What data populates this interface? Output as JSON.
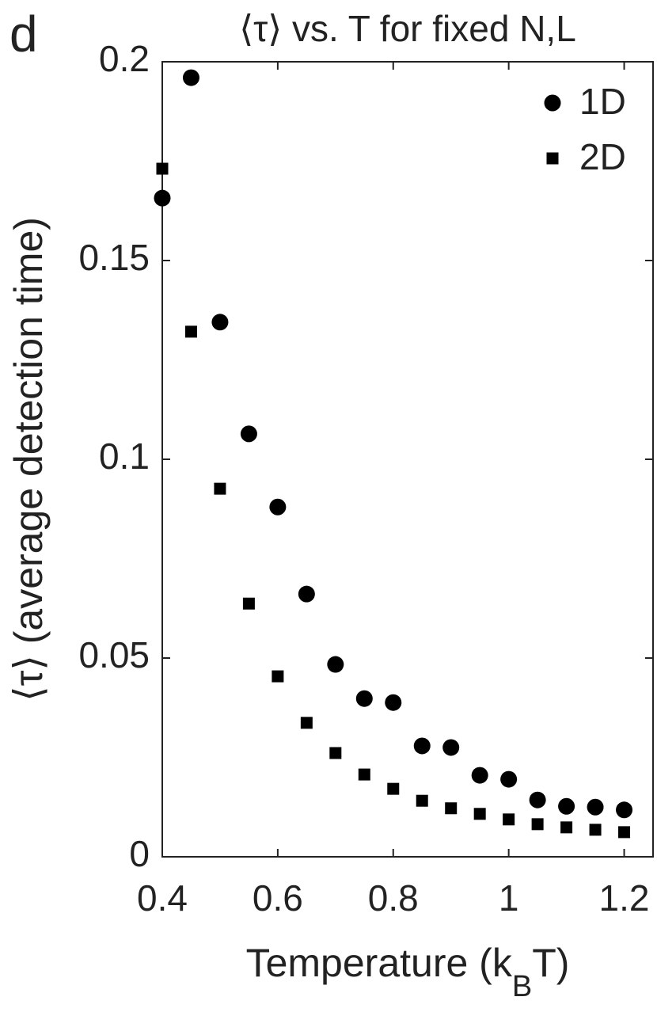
{
  "chart_data": {
    "type": "scatter",
    "panel_label": "d",
    "title": "⟨τ⟩ vs. T for fixed N,L",
    "y_label": "⟨τ⟩ (average detection time)",
    "x_label_parts": [
      "Temperature (k",
      "B",
      "T)"
    ],
    "xlim": [
      0.4,
      1.25
    ],
    "xticks": [
      0.4,
      0.6,
      0.8,
      1,
      1.2
    ],
    "ylim": [
      0,
      0.2
    ],
    "yticks": [
      0,
      0.05,
      0.1,
      0.15,
      0.2
    ],
    "legend": "upper right",
    "series": [
      {
        "name": "1D",
        "marker": "circle",
        "color": "#000000",
        "x": [
          0.4,
          0.45,
          0.5,
          0.55,
          0.6,
          0.65,
          0.7,
          0.75,
          0.8,
          0.85,
          0.9,
          0.95,
          1.0,
          1.05,
          1.1,
          1.15,
          1.2
        ],
        "values": [
          0.1657,
          0.196,
          0.1345,
          0.1064,
          0.088,
          0.0661,
          0.0484,
          0.0398,
          0.0388,
          0.0279,
          0.0275,
          0.0205,
          0.0195,
          0.0143,
          0.0127,
          0.0125,
          0.0118
        ]
      },
      {
        "name": "2D",
        "marker": "square",
        "color": "#000000",
        "x": [
          0.4,
          0.45,
          0.5,
          0.55,
          0.6,
          0.65,
          0.7,
          0.75,
          0.8,
          0.85,
          0.9,
          0.95,
          1.0,
          1.05,
          1.1,
          1.15,
          1.2
        ],
        "values": [
          0.1731,
          0.1321,
          0.0926,
          0.0637,
          0.0454,
          0.0337,
          0.0261,
          0.0207,
          0.0171,
          0.0141,
          0.0122,
          0.0108,
          0.0094,
          0.0082,
          0.0074,
          0.0068,
          0.0062
        ]
      }
    ]
  }
}
